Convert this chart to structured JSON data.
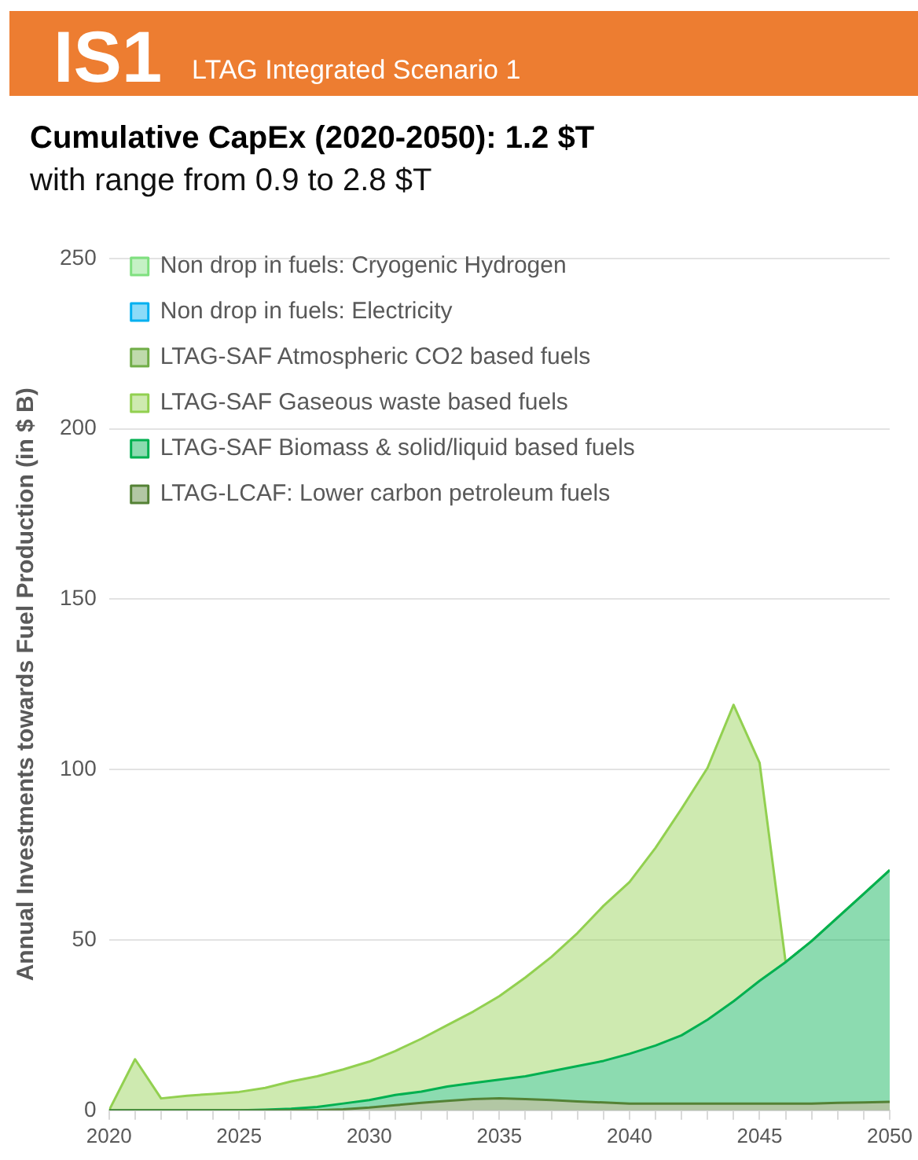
{
  "chart_data": {
    "type": "area",
    "stacked": true,
    "title": "IS1",
    "subtitle": "LTAG Integrated Scenario 1",
    "annotations": [
      "Cumulative CapEx (2020-2050): 1.2 $T",
      "with range from 0.9 to 2.8 $T"
    ],
    "ylabel": "Annual Investments towards Fuel Production (in $ B)",
    "x": [
      2020,
      2021,
      2022,
      2023,
      2024,
      2025,
      2026,
      2027,
      2028,
      2029,
      2030,
      2031,
      2032,
      2033,
      2034,
      2035,
      2036,
      2037,
      2038,
      2039,
      2040,
      2041,
      2042,
      2043,
      2044,
      2045,
      2046,
      2047,
      2048,
      2049,
      2050
    ],
    "xlim": [
      2020,
      2050
    ],
    "xticks": [
      2020,
      {
        "value": 2021,
        "label": null
      },
      {
        "value": 2022,
        "label": null
      },
      {
        "value": 2023,
        "label": null
      },
      {
        "value": 2024,
        "label": null
      },
      2025,
      {
        "value": 2026,
        "label": null
      },
      {
        "value": 2027,
        "label": null
      },
      {
        "value": 2028,
        "label": null
      },
      {
        "value": 2029,
        "label": null
      },
      2030,
      {
        "value": 2031,
        "label": null
      },
      {
        "value": 2032,
        "label": null
      },
      {
        "value": 2033,
        "label": null
      },
      {
        "value": 2034,
        "label": null
      },
      2035,
      {
        "value": 2036,
        "label": null
      },
      {
        "value": 2037,
        "label": null
      },
      {
        "value": 2038,
        "label": null
      },
      {
        "value": 2039,
        "label": null
      },
      2040,
      {
        "value": 2041,
        "label": null
      },
      {
        "value": 2042,
        "label": null
      },
      {
        "value": 2043,
        "label": null
      },
      {
        "value": 2044,
        "label": null
      },
      2045,
      {
        "value": 2046,
        "label": null
      },
      {
        "value": 2047,
        "label": null
      },
      {
        "value": 2048,
        "label": null
      },
      {
        "value": 2049,
        "label": null
      },
      2050
    ],
    "ylim": [
      0,
      250
    ],
    "yticks": [
      0,
      50,
      100,
      150,
      200,
      250
    ],
    "grid": "y",
    "legend": "top left",
    "series": [
      {
        "name": "LTAG-LCAF: Lower carbon petroleum fuels",
        "color": "#548235",
        "values": [
          0,
          0,
          0,
          0,
          0,
          0,
          0,
          0,
          0,
          0.3,
          0.8,
          1.5,
          2.2,
          2.8,
          3.3,
          3.5,
          3.3,
          3,
          2.6,
          2.3,
          2,
          2,
          2,
          2,
          2,
          2,
          2,
          2,
          2.2,
          2.3,
          2.5
        ]
      },
      {
        "name": "LTAG-SAF Biomass & solid/liquid based fuels",
        "color": "#00b050",
        "values": [
          0,
          0,
          0,
          0,
          0,
          0,
          0.2,
          0.5,
          1,
          1.7,
          2.2,
          3,
          3.3,
          4.2,
          4.7,
          5.5,
          6.7,
          8.5,
          10.4,
          12.2,
          14.6,
          17,
          20,
          24.6,
          30,
          36,
          41.5,
          47.7,
          54.4,
          61.2,
          68
        ]
      },
      {
        "name": "LTAG-SAF Gaseous waste based fuels",
        "color": "#92d050",
        "values": [
          0,
          15,
          3.5,
          4.3,
          4.8,
          5.4,
          6.4,
          8,
          9,
          10,
          11.3,
          12.9,
          15.5,
          18,
          21,
          24.5,
          29,
          33.5,
          39,
          45.5,
          50.4,
          58,
          66.5,
          73.9,
          87,
          64,
          0,
          0,
          0,
          0,
          0
        ]
      },
      {
        "name": "LTAG-SAF Atmospheric CO2 based fuels",
        "color": "#70ad47",
        "values": [
          null,
          null,
          null,
          null,
          null,
          null,
          null,
          null,
          null,
          null,
          null,
          null,
          null,
          null,
          null,
          null,
          null,
          null,
          null,
          null,
          null,
          null,
          null,
          null,
          null,
          null,
          null,
          null,
          null,
          null,
          null
        ]
      },
      {
        "name": "Non drop in fuels: Electricity",
        "color": "#00b0f0",
        "values": [
          null,
          null,
          null,
          null,
          null,
          null,
          null,
          null,
          null,
          null,
          null,
          null,
          null,
          null,
          null,
          null,
          null,
          null,
          null,
          null,
          null,
          null,
          null,
          null,
          null,
          null,
          null,
          null,
          null,
          null,
          null
        ]
      },
      {
        "name": "Non drop in fuels: Cryogenic Hydrogen",
        "color": "#7fe07f",
        "values": [
          null,
          null,
          null,
          null,
          null,
          null,
          null,
          null,
          null,
          null,
          null,
          null,
          null,
          null,
          null,
          null,
          null,
          null,
          null,
          null,
          null,
          null,
          null,
          null,
          null,
          null,
          null,
          null,
          null,
          null,
          null
        ]
      }
    ]
  }
}
